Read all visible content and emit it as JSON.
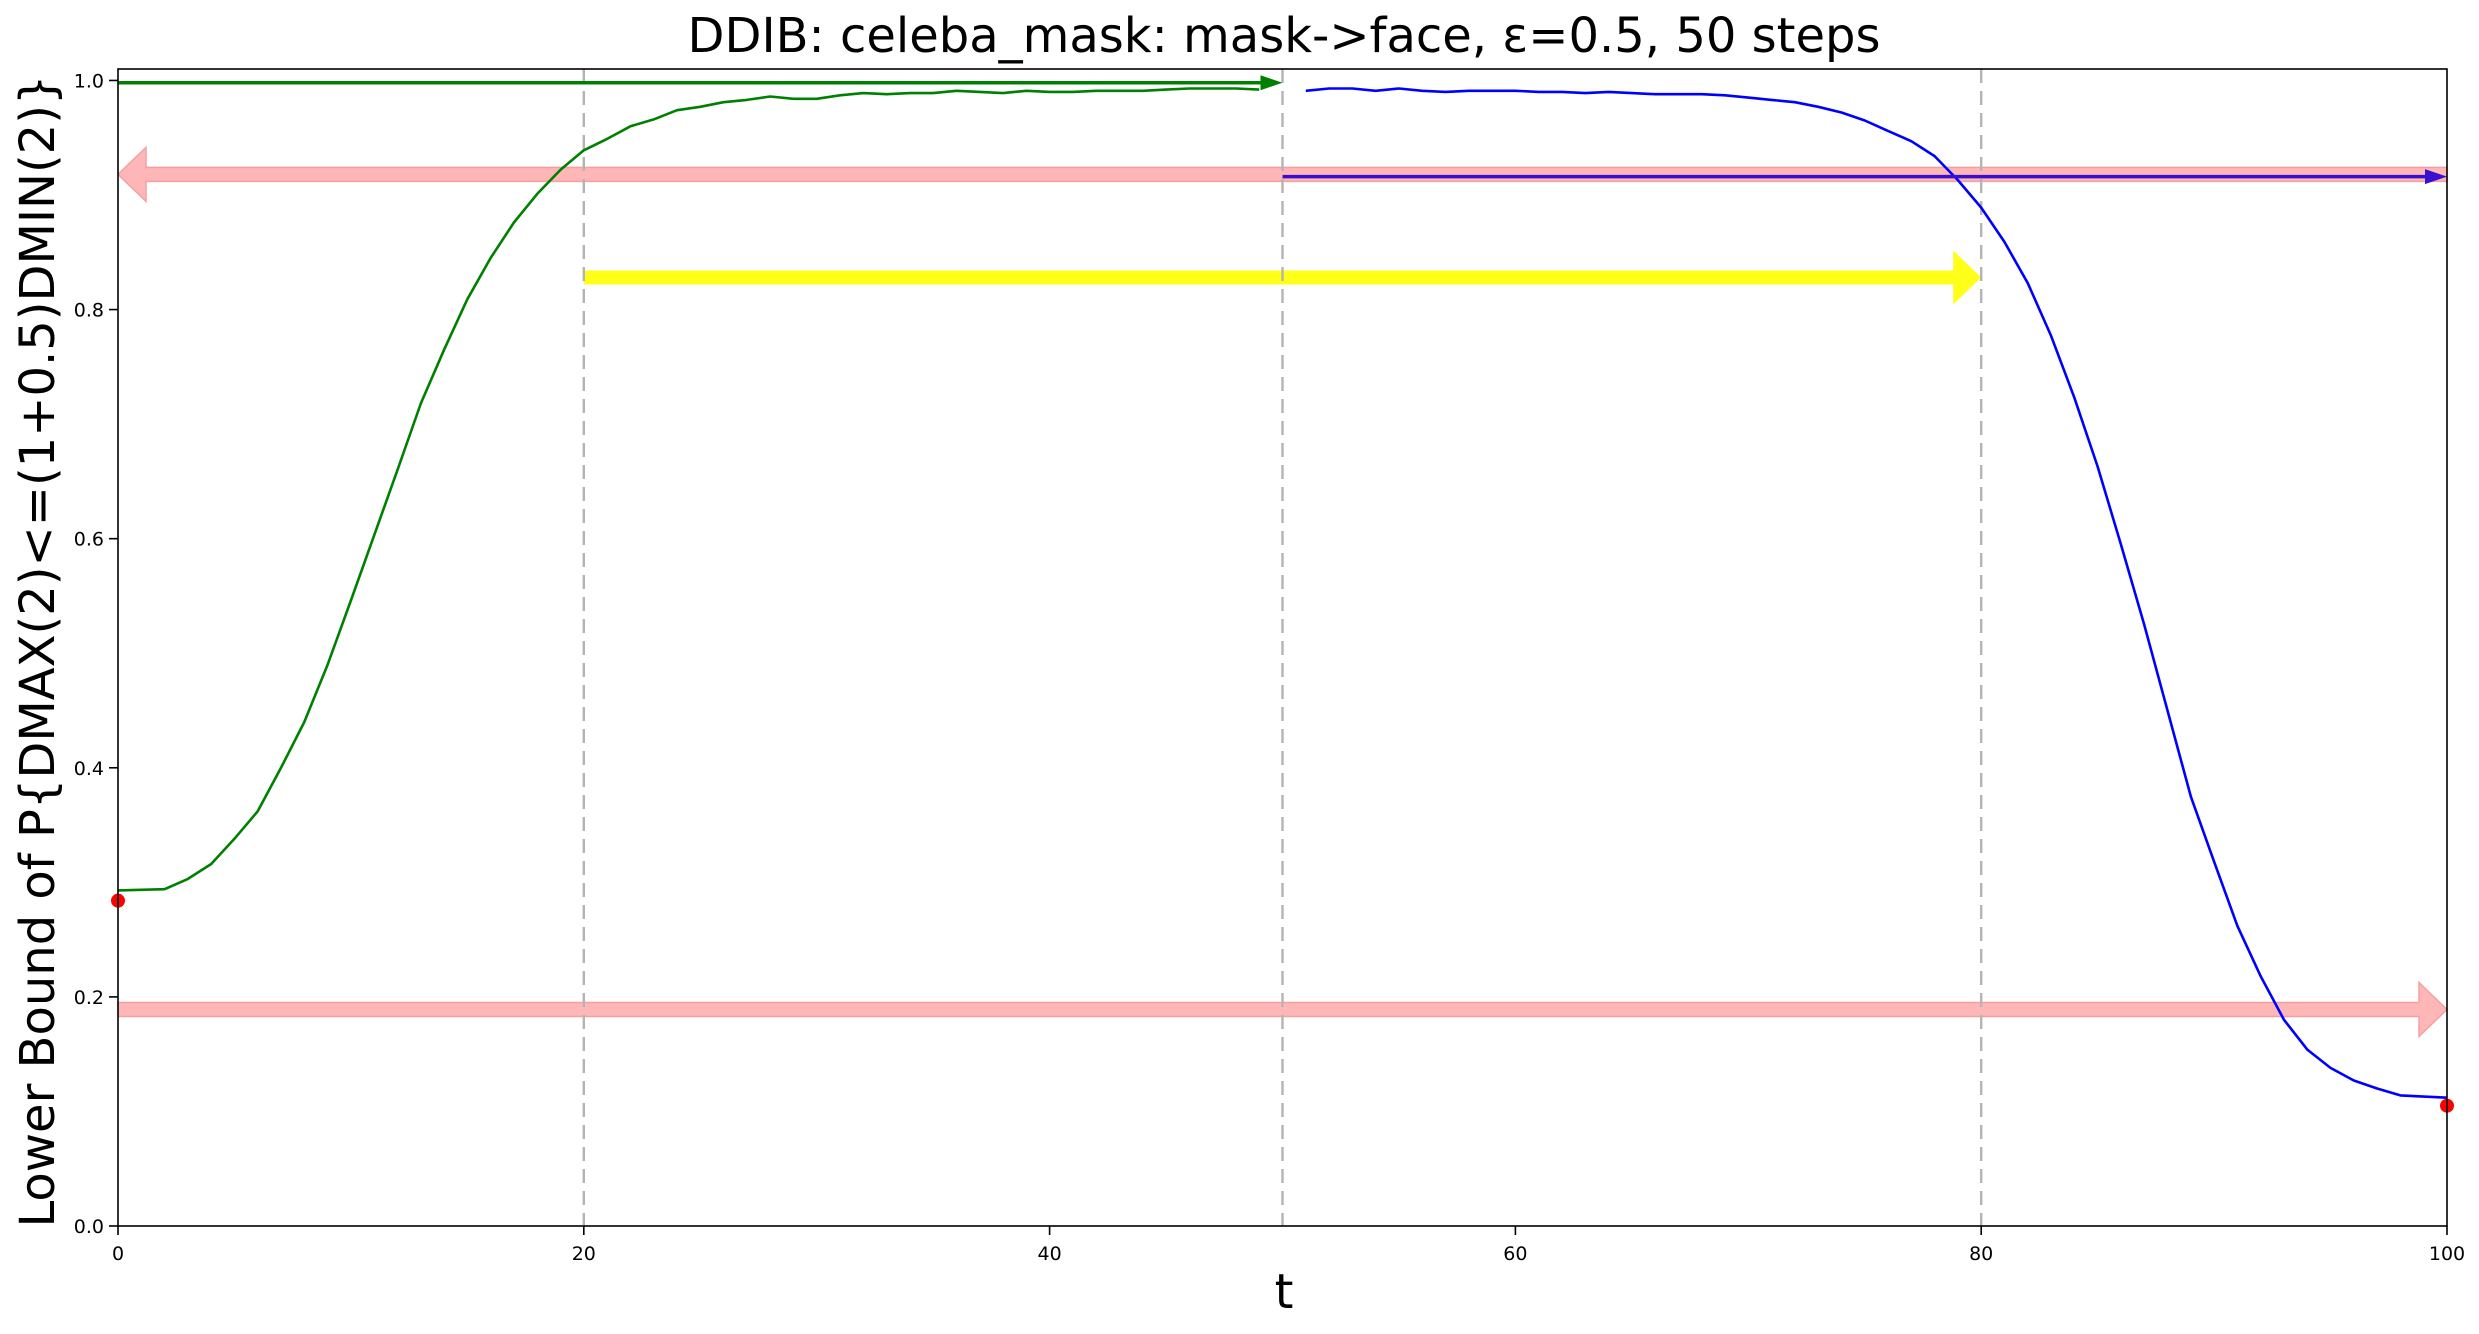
{
  "chart_data": {
    "type": "line",
    "title": "DDIB: celeba_mask: mask->face, ε=0.5, 50 steps",
    "xlabel": "t",
    "ylabel": "Lower Bound of P{DMAX(2)<=(1+0.5)DMIN(2)}",
    "xlim": [
      0,
      100
    ],
    "ylim": [
      0,
      1.01
    ],
    "xticks": [
      0,
      20,
      40,
      60,
      80,
      100
    ],
    "yticks": [
      0.0,
      0.2,
      0.4,
      0.6,
      0.8,
      1.0
    ],
    "xtick_labels": [
      "0",
      "20",
      "40",
      "60",
      "80",
      "100"
    ],
    "ytick_labels": [
      "0.0",
      "0.2",
      "0.4",
      "0.6",
      "0.8",
      "1.0"
    ],
    "grid": false,
    "vlines": [
      20,
      50,
      80
    ],
    "series": [
      {
        "color": "#008000",
        "x": [
          0,
          2,
          3,
          4,
          5,
          6,
          7,
          8,
          9,
          10,
          11,
          12,
          13,
          14,
          15,
          16,
          17,
          18,
          19,
          20,
          21,
          22,
          23,
          24,
          25,
          26,
          27,
          28,
          29,
          30,
          31,
          32,
          33,
          34,
          35,
          36,
          37,
          38,
          39,
          40,
          41,
          42,
          43,
          44,
          45,
          46,
          47,
          48,
          49
        ],
        "y": [
          0.293,
          0.294,
          0.303,
          0.316,
          0.338,
          0.362,
          0.4,
          0.44,
          0.49,
          0.546,
          0.603,
          0.66,
          0.718,
          0.765,
          0.809,
          0.845,
          0.876,
          0.901,
          0.922,
          0.939,
          0.949,
          0.96,
          0.966,
          0.974,
          0.977,
          0.981,
          0.983,
          0.986,
          0.984,
          0.984,
          0.987,
          0.989,
          0.988,
          0.989,
          0.989,
          0.991,
          0.99,
          0.989,
          0.991,
          0.99,
          0.99,
          0.991,
          0.991,
          0.991,
          0.992,
          0.993,
          0.993,
          0.993,
          0.992
        ]
      },
      {
        "color": "#0000ff",
        "x": [
          51,
          52,
          53,
          54,
          55,
          56,
          57,
          58,
          59,
          60,
          61,
          62,
          63,
          64,
          65,
          66,
          67,
          68,
          69,
          70,
          71,
          72,
          73,
          74,
          75,
          76,
          77,
          78,
          79,
          80,
          81,
          82,
          83,
          84,
          85,
          86,
          87,
          88,
          89,
          90,
          91,
          92,
          93,
          94,
          95,
          96,
          97,
          98,
          99,
          100
        ],
        "y": [
          0.991,
          0.993,
          0.993,
          0.991,
          0.993,
          0.991,
          0.99,
          0.991,
          0.991,
          0.991,
          0.99,
          0.99,
          0.989,
          0.99,
          0.989,
          0.988,
          0.988,
          0.988,
          0.987,
          0.985,
          0.983,
          0.981,
          0.977,
          0.972,
          0.965,
          0.956,
          0.947,
          0.934,
          0.913,
          0.889,
          0.859,
          0.823,
          0.777,
          0.723,
          0.663,
          0.595,
          0.525,
          0.45,
          0.375,
          0.318,
          0.262,
          0.218,
          0.18,
          0.154,
          0.138,
          0.127,
          0.12,
          0.114,
          0.113,
          0.112
        ]
      }
    ],
    "points": [
      {
        "x": 0,
        "y": 0.284,
        "color": "#ff0000"
      },
      {
        "x": 100,
        "y": 0.105,
        "color": "#ff0000"
      }
    ],
    "arrows": [
      {
        "x1": 0,
        "y1": 0.998,
        "x2": 50,
        "y2": 0.998,
        "color": "#008000",
        "style": "thin"
      },
      {
        "x1": 100,
        "y1": 0.918,
        "x2": 0,
        "y2": 0.918,
        "color": "#ffb6b6",
        "style": "wide"
      },
      {
        "x1": 50,
        "y1": 0.916,
        "x2": 100,
        "y2": 0.916,
        "color": "#3a10d0",
        "style": "thin"
      },
      {
        "x1": 20,
        "y1": 0.828,
        "x2": 80,
        "y2": 0.828,
        "color": "#ffff1a",
        "style": "wide"
      },
      {
        "x1": 0,
        "y1": 0.189,
        "x2": 100,
        "y2": 0.189,
        "color": "#ffb6b6",
        "style": "wide"
      }
    ]
  }
}
